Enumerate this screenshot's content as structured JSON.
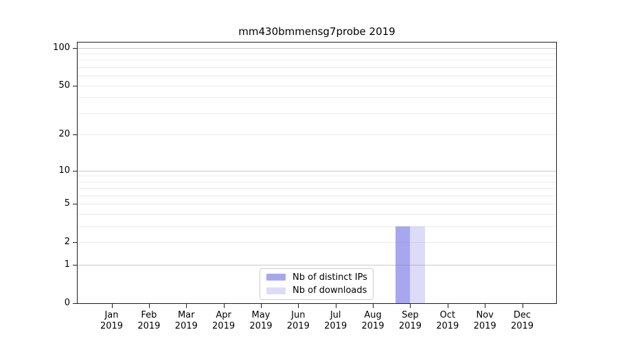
{
  "title": "mm430bmmensg7probe 2019",
  "chart_data": {
    "type": "bar",
    "title": "mm430bmmensg7probe 2019",
    "categories": [
      "Jan",
      "Feb",
      "Mar",
      "Apr",
      "May",
      "Jun",
      "Jul",
      "Aug",
      "Sep",
      "Oct",
      "Nov",
      "Dec"
    ],
    "year_label": "2019",
    "series": [
      {
        "name": "Nb of distinct IPs",
        "color": "#a7a7f0",
        "values": [
          0,
          0,
          0,
          0,
          0,
          0,
          0,
          0,
          3,
          0,
          0,
          0
        ]
      },
      {
        "name": "Nb of downloads",
        "color": "#dcdcf9",
        "values": [
          0,
          0,
          0,
          0,
          0,
          0,
          0,
          0,
          3,
          0,
          0,
          0
        ]
      }
    ],
    "y_scale": "log1p",
    "ylim": [
      0,
      110
    ],
    "xlabel": "",
    "ylabel": "",
    "y_ticks": [
      0,
      1,
      2,
      5,
      10,
      20,
      50,
      100
    ],
    "y_gridlines_major": [
      1,
      10,
      100
    ],
    "y_gridlines_minor": [
      2,
      3,
      4,
      5,
      6,
      7,
      8,
      9,
      20,
      30,
      40,
      50,
      60,
      70,
      80,
      90
    ],
    "grid": true,
    "legend_position": "lower center"
  },
  "colors": {
    "background": "#ffffff",
    "spine": "#1a1a1a",
    "text": "#000000",
    "grid_major": "rgba(120,120,120,0.40)",
    "grid_minor": "rgba(128,128,128,0.15)",
    "legend_border": "#cccccc"
  }
}
